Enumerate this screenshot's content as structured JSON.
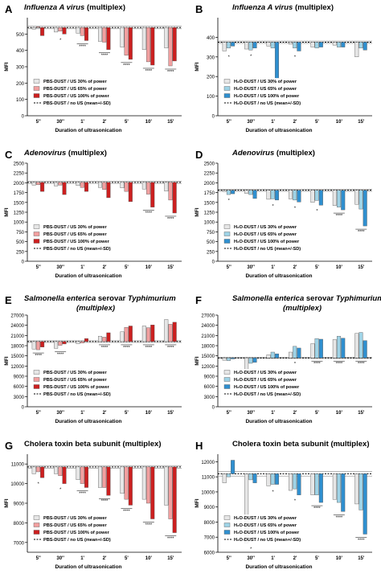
{
  "colors": {
    "c30": "#e6e6e6",
    "c65": "#f2a0a0",
    "c100": "#cc1f1f",
    "h65": "#9fd3e6",
    "h100": "#2f8fcf",
    "ref": "#000000",
    "outline": "#555555"
  },
  "chart_data": [
    {
      "id": "A",
      "panel_label": "A",
      "type": "bar",
      "title_italic": "Influenza A virus",
      "title_rest": " (multiplex)",
      "ylabel": "MFI",
      "xlabel": "Duration of ultrasonication",
      "categories": [
        "5''",
        "30''",
        "1'",
        "2'",
        "5'",
        "10'",
        "15'"
      ],
      "ylim": [
        0,
        600
      ],
      "yticks": [
        0,
        100,
        200,
        300,
        400,
        500
      ],
      "ref": 540,
      "ref_sd": 8,
      "legend": [
        "PBS-DUST / US 30% of power",
        "PBS-DUST / US 65% of power",
        "PBS-DUST / US 100% of power",
        "PBS-DUST / no US (mean+/-SD)"
      ],
      "series": [
        {
          "name": "US 30%",
          "values": [
            530,
            512,
            505,
            455,
            420,
            405,
            415
          ]
        },
        {
          "name": "US 65%",
          "values": [
            545,
            518,
            490,
            450,
            370,
            330,
            305
          ]
        },
        {
          "name": "US 100%",
          "values": [
            490,
            500,
            460,
            405,
            345,
            310,
            335
          ]
        }
      ],
      "sig": [
        "",
        "*",
        "****",
        "****",
        "****",
        "****",
        "****"
      ]
    },
    {
      "id": "B",
      "panel_label": "B",
      "type": "bar",
      "title_italic": "Influenza A virus",
      "title_rest": " (multiplex)",
      "ylabel": "MFI",
      "xlabel": "Duration of ultrasonication",
      "categories": [
        "5''",
        "30''",
        "1'",
        "2'",
        "5'",
        "10'",
        "15'"
      ],
      "ylim": [
        0,
        500
      ],
      "yticks": [
        0,
        100,
        200,
        300,
        400
      ],
      "ref": 375,
      "ref_sd": 6,
      "legend": [
        "H₂O-DUST / US 30% of power",
        "H₂O-DUST / US 65% of power",
        "H₂O-DUST / US 100% of power",
        "H₂O-DUST / no US (mean+/-SD)"
      ],
      "series": [
        {
          "name": "US 30%",
          "values": [
            330,
            340,
            355,
            365,
            350,
            360,
            300
          ]
        },
        {
          "name": "US 65%",
          "values": [
            345,
            335,
            345,
            345,
            345,
            350,
            345
          ]
        },
        {
          "name": "US 100%",
          "values": [
            355,
            345,
            190,
            330,
            350,
            350,
            335
          ]
        }
      ],
      "sig": [
        "*",
        "*",
        "****",
        "*",
        "",
        "",
        ""
      ]
    },
    {
      "id": "C",
      "panel_label": "C",
      "type": "bar",
      "title_italic": "Adenovirus",
      "title_rest": " (multiplex)",
      "ylabel": "MFI",
      "xlabel": "Duration of ultrasonication",
      "categories": [
        "5''",
        "30''",
        "1'",
        "2'",
        "5'",
        "10'",
        "15'"
      ],
      "ylim": [
        0,
        2500
      ],
      "yticks": [
        0,
        250,
        500,
        750,
        1000,
        1250,
        1500,
        1750,
        2000,
        2250,
        2500
      ],
      "ref": 2010,
      "ref_sd": 25,
      "legend": [
        "PBS-DUST / US 30% of power",
        "PBS-DUST / US 65% of power",
        "PBS-DUST / US 100% of power",
        "PBS-DUST / no US (mean+/-SD)"
      ],
      "series": [
        {
          "name": "US 30%",
          "values": [
            1940,
            1920,
            1930,
            1880,
            1870,
            1840,
            1790
          ]
        },
        {
          "name": "US 65%",
          "values": [
            1950,
            1940,
            1880,
            1830,
            1780,
            1710,
            1560
          ]
        },
        {
          "name": "US 100%",
          "values": [
            1780,
            1700,
            1780,
            1620,
            1520,
            1380,
            1230
          ]
        }
      ],
      "sig": [
        "",
        "",
        "",
        "",
        "",
        "****",
        "****"
      ]
    },
    {
      "id": "D",
      "panel_label": "D",
      "type": "bar",
      "title_italic": "Adenovirus",
      "title_rest": " (multiplex)",
      "ylabel": "MFI",
      "xlabel": "Duration of ultrasonication",
      "categories": [
        "5''",
        "30''",
        "1'",
        "2'",
        "5'",
        "10'",
        "15'"
      ],
      "ylim": [
        0,
        2500
      ],
      "yticks": [
        0,
        250,
        500,
        750,
        1000,
        1250,
        1500,
        1750,
        2000,
        2250,
        2500
      ],
      "ref": 1810,
      "ref_sd": 25,
      "legend": [
        "H₂O-DUST / US 30% of power",
        "H₂O-DUST / US 65% of power",
        "H₂O-DUST / US 100% of power",
        "H₂O-DUST / no US (mean+/-SD)"
      ],
      "series": [
        {
          "name": "US 30%",
          "values": [
            1780,
            1730,
            1580,
            1590,
            1500,
            1420,
            1450
          ]
        },
        {
          "name": "US 65%",
          "values": [
            1700,
            1700,
            1590,
            1560,
            1550,
            1380,
            1330
          ]
        },
        {
          "name": "US 100%",
          "values": [
            1720,
            1600,
            1560,
            1510,
            1430,
            1310,
            900
          ]
        }
      ],
      "sig": [
        "*",
        "",
        "*",
        "*",
        "*",
        "****",
        "****"
      ]
    },
    {
      "id": "E",
      "panel_label": "E",
      "type": "bar",
      "title_italic": "Salmonella enterica",
      "title_rest": " serovar ",
      "title_italic2": "Typhimurium",
      "title_line2": "(multiplex)",
      "ylabel": "MFI",
      "xlabel": "Duration of ultrasonication",
      "categories": [
        "5''",
        "30''",
        "1'",
        "2'",
        "5'",
        "10'",
        "15'"
      ],
      "ylim": [
        0,
        27000
      ],
      "yticks": [
        0,
        3000,
        6000,
        9000,
        12000,
        15000,
        18000,
        21000,
        24000,
        27000
      ],
      "ref": 19200,
      "ref_sd": 250,
      "legend": [
        "PBS-DUST / US 30% of power",
        "PBS-DUST / US 65% of power",
        "PBS-DUST / US 100% of power",
        "PBS-DUST / no US (mean+/-SD)"
      ],
      "series": [
        {
          "name": "US 30%",
          "values": [
            17000,
            17200,
            18600,
            20800,
            22100,
            23800,
            25700
          ]
        },
        {
          "name": "US 65%",
          "values": [
            16800,
            18100,
            18800,
            20500,
            23400,
            23300,
            24300
          ]
        },
        {
          "name": "US 100%",
          "values": [
            17600,
            18500,
            20100,
            21800,
            23800,
            24100,
            24900
          ]
        }
      ],
      "sig": [
        "****",
        "****",
        "",
        "****",
        "****",
        "****",
        "****"
      ]
    },
    {
      "id": "F",
      "panel_label": "F",
      "type": "bar",
      "title_italic": "Salmonella enterica",
      "title_rest": " serovar ",
      "title_italic2": "Typhimurium",
      "title_line2": "(multiplex)",
      "ylabel": "MFI",
      "xlabel": "Duration of ultrasonication",
      "categories": [
        "5''",
        "30''",
        "1'",
        "2'",
        "5'",
        "10'",
        "15'"
      ],
      "ylim": [
        0,
        27000
      ],
      "yticks": [
        0,
        3000,
        6000,
        9000,
        12000,
        15000,
        18000,
        21000,
        24000,
        27000
      ],
      "ref": 14400,
      "ref_sd": 150,
      "legend": [
        "H₂O-DUST / US 30% of power",
        "H₂O-DUST / US 65% of power",
        "H₂O-DUST / US 100% of power",
        "H₂O-DUST / no US (mean+/-SD)"
      ],
      "series": [
        {
          "name": "US 30%",
          "values": [
            13700,
            10100,
            15300,
            16100,
            18600,
            19800,
            21600
          ]
        },
        {
          "name": "US 65%",
          "values": [
            13600,
            12800,
            16100,
            17800,
            20100,
            20800,
            21900
          ]
        },
        {
          "name": "US 100%",
          "values": [
            14100,
            13100,
            15600,
            17300,
            19900,
            20200,
            19500
          ]
        }
      ],
      "sig": [
        "",
        "*",
        "",
        "*",
        "****",
        "****",
        "****"
      ]
    },
    {
      "id": "G",
      "panel_label": "G",
      "type": "bar",
      "title_italic": "",
      "title_rest": "Cholera toxin beta subunit (multiplex)",
      "ylabel": "MFI",
      "xlabel": "Duration of ultrasonication",
      "categories": [
        "5''",
        "30''",
        "1'",
        "2'",
        "5'",
        "10'",
        "15'"
      ],
      "ylim": [
        6500,
        11500
      ],
      "yticks": [
        7000,
        8000,
        9000,
        10000,
        11000
      ],
      "ref": 10850,
      "ref_sd": 70,
      "legend": [
        "PBS-DUST / US 30% of power",
        "PBS-DUST / US 65% of power",
        "PBS-DUST / US 100% of power",
        "PBS-DUST / no US (mean+/-SD)"
      ],
      "series": [
        {
          "name": "US 30%",
          "values": [
            10500,
            10500,
            10200,
            9800,
            9500,
            9200,
            8900
          ]
        },
        {
          "name": "US 65%",
          "values": [
            10600,
            10400,
            10000,
            9800,
            9200,
            9000,
            8200
          ]
        },
        {
          "name": "US 100%",
          "values": [
            10300,
            10000,
            9800,
            9400,
            8900,
            8200,
            7500
          ]
        }
      ],
      "sig": [
        "*",
        "*",
        "****",
        "****",
        "****",
        "****",
        "****"
      ]
    },
    {
      "id": "H",
      "panel_label": "H",
      "type": "bar",
      "title_italic": "",
      "title_rest": "Cholera toxin beta subunit (multiplex)",
      "ylabel": "MFI",
      "xlabel": "Duration of ultrasonication",
      "categories": [
        "5''",
        "30''",
        "1'",
        "2'",
        "5'",
        "10'",
        "15'"
      ],
      "ylim": [
        6000,
        12500
      ],
      "yticks": [
        6000,
        7000,
        8000,
        9000,
        10000,
        11000,
        12000
      ],
      "ref": 11200,
      "ref_sd": 150,
      "legend": [
        "H₂O-DUST / US 30% of power",
        "H₂O-DUST / US 65% of power",
        "H₂O-DUST / US 100% of power",
        "H₂O-DUST / no US (mean+/-SD)"
      ],
      "series": [
        {
          "name": "US 30%",
          "values": [
            10600,
            6600,
            10400,
            10100,
            9800,
            9500,
            9200
          ]
        },
        {
          "name": "US 65%",
          "values": [
            11000,
            10800,
            10500,
            10200,
            9800,
            9300,
            8800
          ]
        },
        {
          "name": "US 100%",
          "values": [
            12100,
            10600,
            10500,
            9800,
            9300,
            8700,
            7200
          ]
        }
      ],
      "sig": [
        "",
        "*",
        "*",
        "*",
        "****",
        "****",
        "****"
      ]
    }
  ]
}
